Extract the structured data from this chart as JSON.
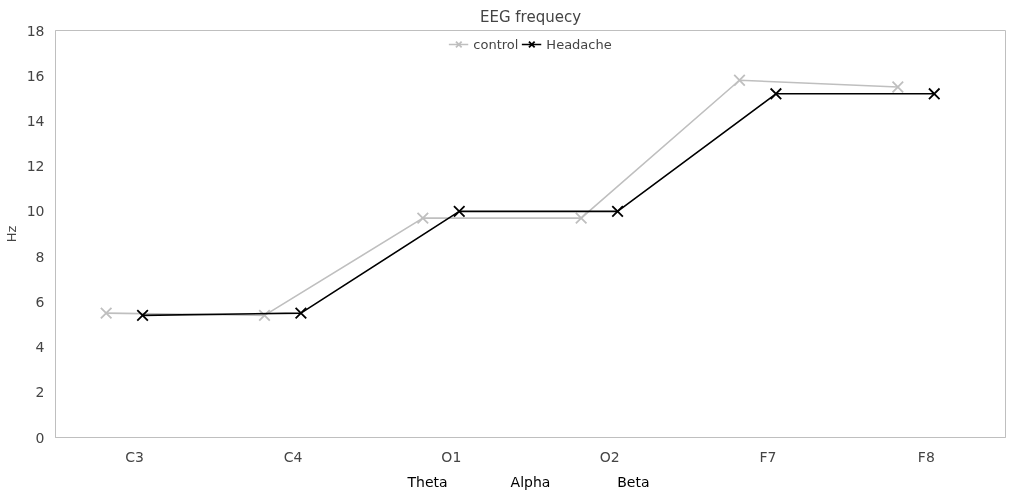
{
  "chart_data": {
    "type": "line",
    "title": "EEG frequecy",
    "ylabel": "Hz",
    "categories": [
      "C3",
      "C4",
      "O1",
      "O2",
      "F7",
      "F8"
    ],
    "series": [
      {
        "name": "control",
        "color": "#bfbfbf",
        "values": [
          5.5,
          5.4,
          9.7,
          9.7,
          15.8,
          15.5
        ]
      },
      {
        "name": "Headache",
        "color": "#000000",
        "values": [
          5.4,
          5.5,
          10,
          10,
          15.2,
          15.2
        ]
      }
    ],
    "ylim": [
      0,
      18
    ],
    "yticks": [
      0,
      2,
      4,
      6,
      8,
      10,
      12,
      14,
      16,
      18
    ],
    "grid": false,
    "legend": "top",
    "marker": "cross",
    "line_style": "solid",
    "annotations": [
      "Theta",
      "Alpha",
      "Beta"
    ]
  }
}
